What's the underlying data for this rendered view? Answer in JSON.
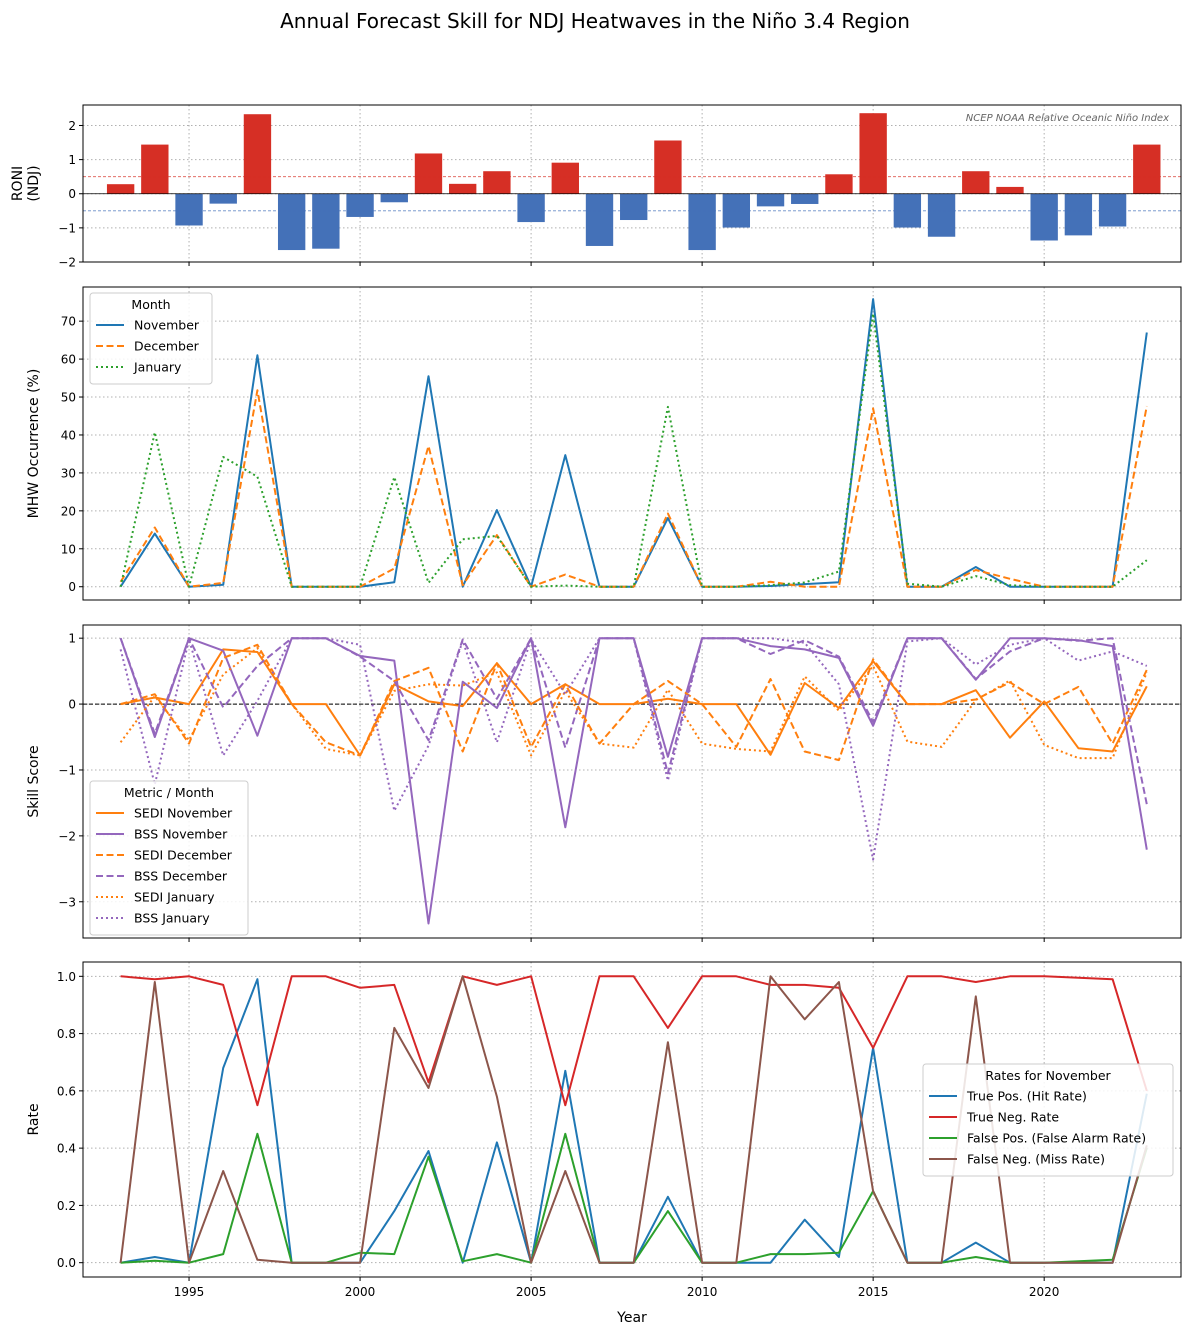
{
  "figure": {
    "title": "Annual Forecast Skill for NDJ Heatwaves in the Niño 3.4 Region",
    "xlabel": "Year",
    "x_ticks": [
      1995,
      2000,
      2005,
      2010,
      2015,
      2020
    ]
  },
  "chart_data": [
    {
      "type": "bar",
      "ylabel": "RONI (NDJ)",
      "annotation": "NCEP NOAA Relative Oceanic Niño Index",
      "ylim": [
        -2,
        2.6
      ],
      "yticks": [
        -2,
        -1,
        0,
        1,
        2
      ],
      "thresholds": [
        0.5,
        -0.5
      ],
      "colors": {
        "positive": "#d62f25",
        "negative": "#4471b8"
      },
      "x": [
        1993,
        1994,
        1995,
        1996,
        1997,
        1998,
        1999,
        2000,
        2001,
        2002,
        2003,
        2004,
        2005,
        2006,
        2007,
        2008,
        2009,
        2010,
        2011,
        2012,
        2013,
        2014,
        2015,
        2016,
        2017,
        2018,
        2019,
        2020,
        2021,
        2022,
        2023
      ],
      "values": [
        0.28,
        1.44,
        -0.93,
        -0.29,
        2.33,
        -1.65,
        -1.61,
        -0.68,
        -0.25,
        1.18,
        0.29,
        0.66,
        -0.83,
        0.91,
        -1.53,
        -0.77,
        1.56,
        -1.65,
        -0.99,
        -0.37,
        -0.3,
        0.57,
        2.36,
        -0.99,
        -1.26,
        0.66,
        0.2,
        -1.37,
        -1.22,
        -0.96,
        1.44
      ],
      "grid": true
    },
    {
      "type": "line",
      "ylabel": "MHW Occurrence (%)",
      "ylim": [
        -3.5,
        79
      ],
      "yticks": [
        0,
        10,
        20,
        30,
        40,
        50,
        60,
        70
      ],
      "legend": {
        "title": "Month",
        "position": "top-left"
      },
      "x": [
        1993,
        1994,
        1995,
        1996,
        1997,
        1998,
        1999,
        2000,
        2001,
        2002,
        2003,
        2004,
        2005,
        2006,
        2007,
        2008,
        2009,
        2010,
        2011,
        2012,
        2013,
        2014,
        2015,
        2016,
        2017,
        2018,
        2019,
        2020,
        2021,
        2022,
        2023
      ],
      "series": [
        {
          "name": "November",
          "color": "#1f77b4",
          "dash": "solid",
          "values": [
            0,
            14,
            0,
            0.5,
            61,
            0,
            0,
            0,
            1.2,
            55.5,
            0,
            20.2,
            0,
            34.7,
            0,
            0,
            18.1,
            0,
            0,
            0.2,
            0.7,
            1.2,
            75.8,
            0,
            0,
            5.2,
            0,
            0,
            0,
            0,
            67
          ]
        },
        {
          "name": "December",
          "color": "#ff7f0e",
          "dash": "dashed",
          "values": [
            1.3,
            15.6,
            0,
            1,
            51.8,
            0,
            0,
            0,
            4.8,
            37.1,
            0.4,
            13.6,
            0,
            3.2,
            0,
            0,
            19.3,
            0,
            0,
            1.3,
            0,
            0,
            47,
            0,
            0,
            4.4,
            2.1,
            0,
            0,
            0,
            47.6
          ]
        },
        {
          "name": "January",
          "color": "#2ca02c",
          "dash": "dotted",
          "values": [
            0,
            40.7,
            0,
            34.2,
            29,
            0,
            0,
            0,
            28.9,
            1,
            12.5,
            13.4,
            0,
            0.3,
            0,
            0,
            47.4,
            0,
            0,
            0.4,
            1.1,
            4,
            72,
            0.8,
            0,
            2.8,
            0.4,
            0,
            0,
            0,
            7
          ]
        }
      ],
      "grid": true
    },
    {
      "type": "line",
      "ylabel": "Skill Score",
      "ylim": [
        -3.55,
        1.2
      ],
      "yticks": [
        -3,
        -2,
        -1,
        0,
        1
      ],
      "zero_line": true,
      "legend": {
        "title": "Metric / Month",
        "position": "bottom-left"
      },
      "x": [
        1993,
        1994,
        1995,
        1996,
        1997,
        1998,
        1999,
        2000,
        2001,
        2002,
        2003,
        2004,
        2005,
        2006,
        2007,
        2008,
        2009,
        2010,
        2011,
        2012,
        2013,
        2014,
        2015,
        2016,
        2017,
        2018,
        2019,
        2020,
        2021,
        2022,
        2023
      ],
      "series": [
        {
          "name": "SEDI November",
          "color": "#ff7f0e",
          "dash": "solid",
          "values": [
            0,
            0.1,
            0,
            0.83,
            0.79,
            0,
            0,
            -0.78,
            0.3,
            0.04,
            -0.03,
            0.62,
            0,
            0.3,
            0,
            0,
            0.08,
            0,
            0,
            -0.77,
            0.32,
            -0.06,
            0.65,
            0,
            0,
            0.21,
            -0.51,
            0.04,
            -0.67,
            -0.72,
            0.27
          ]
        },
        {
          "name": "BSS November",
          "color": "#9467bd",
          "dash": "solid",
          "values": [
            1,
            -0.5,
            1,
            0.81,
            -0.48,
            1,
            1,
            0.73,
            0.66,
            -3.33,
            0.34,
            -0.06,
            1,
            -1.87,
            1,
            1,
            -0.8,
            1,
            1,
            0.88,
            0.83,
            0.7,
            -0.33,
            1,
            1,
            0.37,
            1,
            1,
            0.97,
            0.88,
            -2.21
          ]
        },
        {
          "name": "SEDI December",
          "color": "#ff7f0e",
          "dash": "dashed",
          "values": [
            0,
            0.15,
            -0.6,
            0.7,
            0.9,
            0,
            -0.58,
            -0.78,
            0.35,
            0.55,
            -0.72,
            0.62,
            -0.65,
            0.3,
            -0.6,
            0,
            0.35,
            0,
            -0.65,
            0.38,
            -0.72,
            -0.85,
            0.68,
            0,
            0,
            0.07,
            0.33,
            0,
            0.26,
            -0.6,
            0.52
          ]
        },
        {
          "name": "BSS December",
          "color": "#9467bd",
          "dash": "dashed",
          "values": [
            1,
            -0.45,
            1,
            -0.05,
            0.58,
            1,
            1,
            0.72,
            0.35,
            -0.55,
            0.98,
            0.08,
            1,
            -0.66,
            1,
            1,
            -1.05,
            1,
            1,
            0.76,
            0.97,
            0.72,
            -0.27,
            1,
            1,
            0.38,
            0.8,
            1,
            0.96,
            1,
            -1.52
          ]
        },
        {
          "name": "SEDI January",
          "color": "#ff7f0e",
          "dash": "dotted",
          "values": [
            -0.58,
            0.12,
            -0.55,
            0.45,
            0.85,
            0,
            -0.68,
            -0.78,
            0.2,
            0.3,
            0.28,
            0.48,
            -0.78,
            0.2,
            -0.6,
            -0.66,
            0.22,
            -0.6,
            -0.68,
            -0.72,
            0.42,
            -0.1,
            0.58,
            -0.57,
            -0.65,
            0.06,
            0.36,
            -0.62,
            -0.82,
            -0.82,
            0.48
          ]
        },
        {
          "name": "BSS January",
          "color": "#9467bd",
          "dash": "dotted",
          "values": [
            0.83,
            -1.22,
            0.98,
            -0.78,
            0.05,
            1,
            1,
            0.9,
            -1.62,
            -0.63,
            0.96,
            -0.58,
            0.98,
            0.15,
            1,
            1,
            -1.16,
            1,
            1,
            1,
            0.93,
            0.3,
            -2.36,
            0.95,
            1,
            0.6,
            0.9,
            1,
            0.66,
            0.8,
            0.58
          ]
        }
      ],
      "grid": true
    },
    {
      "type": "line",
      "ylabel": "Rate",
      "ylim": [
        -0.05,
        1.05
      ],
      "yticks": [
        0.0,
        0.2,
        0.4,
        0.6,
        0.8,
        1.0
      ],
      "legend": {
        "title": "Rates for November",
        "position": "center-right"
      },
      "x": [
        1993,
        1994,
        1995,
        1996,
        1997,
        1998,
        1999,
        2000,
        2001,
        2002,
        2003,
        2004,
        2005,
        2006,
        2007,
        2008,
        2009,
        2010,
        2011,
        2012,
        2013,
        2014,
        2015,
        2016,
        2017,
        2018,
        2019,
        2020,
        2021,
        2022,
        2023
      ],
      "series": [
        {
          "name": "True Pos. (Hit Rate)",
          "color": "#1f77b4",
          "dash": "solid",
          "values": [
            0,
            0.02,
            0,
            0.68,
            0.99,
            0,
            0,
            0,
            0.18,
            0.39,
            0,
            0.42,
            0,
            0.67,
            0,
            0,
            0.23,
            0,
            0,
            0,
            0.15,
            0.02,
            0.75,
            0,
            0,
            0.07,
            0,
            0,
            0,
            0,
            0.59
          ]
        },
        {
          "name": "True Neg. Rate",
          "color": "#d62728",
          "dash": "solid",
          "values": [
            1,
            0.99,
            1,
            0.97,
            0.55,
            1,
            1,
            0.96,
            0.97,
            0.63,
            1,
            0.97,
            1,
            0.55,
            1,
            1,
            0.82,
            1,
            1,
            0.97,
            0.97,
            0.96,
            0.75,
            1,
            1,
            0.98,
            1,
            1,
            0.995,
            0.99,
            0.6
          ]
        },
        {
          "name": "False Pos. (False Alarm Rate)",
          "color": "#2ca02c",
          "dash": "solid",
          "values": [
            0,
            0.007,
            0,
            0.03,
            0.45,
            0,
            0,
            0.035,
            0.03,
            0.37,
            0.005,
            0.03,
            0,
            0.45,
            0,
            0,
            0.18,
            0,
            0,
            0.03,
            0.03,
            0.035,
            0.25,
            0,
            0,
            0.02,
            0,
            0,
            0.005,
            0.01,
            0.4
          ]
        },
        {
          "name": "False Neg. (Miss Rate)",
          "color": "#8c564b",
          "dash": "solid",
          "values": [
            0,
            0.98,
            0,
            0.32,
            0.01,
            0,
            0,
            0,
            0.82,
            0.61,
            1,
            0.58,
            0,
            0.32,
            0,
            0,
            0.77,
            0,
            0,
            1,
            0.85,
            0.98,
            0.25,
            0,
            0,
            0.93,
            0,
            0,
            0,
            0,
            0.41
          ]
        }
      ],
      "grid": true
    }
  ]
}
